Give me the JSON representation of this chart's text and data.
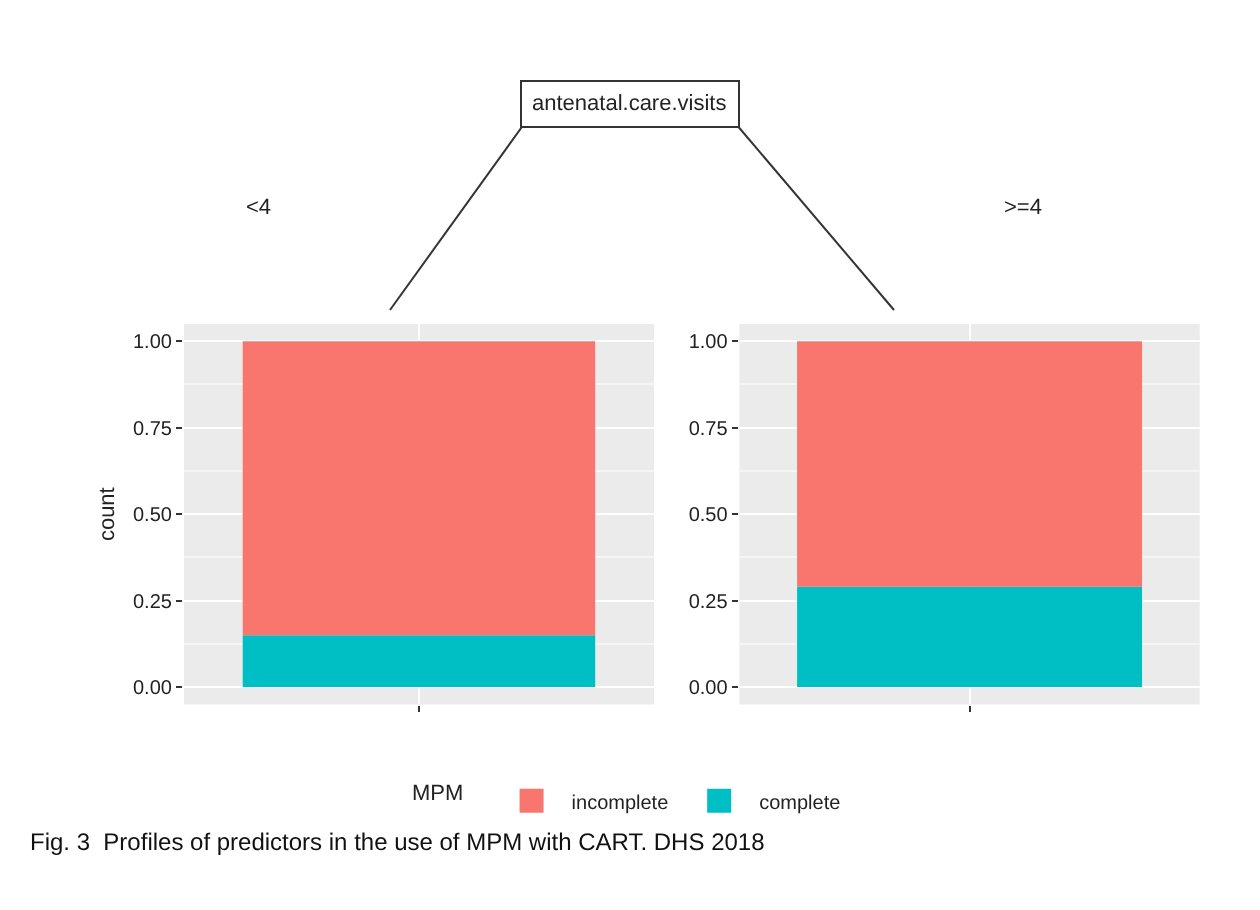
{
  "chart_data": [
    {
      "type": "bar",
      "title": "<4",
      "ylabel": "count",
      "categories": [
        null
      ],
      "stacked": true,
      "legend": "bottom",
      "legend_title": "MPM",
      "grid": true,
      "tick_labels": "y",
      "ylim": [
        -0.05,
        1.05
      ],
      "yticks": [
        {
          "value": 0,
          "label": "0.00"
        },
        {
          "value": 0.25,
          "label": "0.25"
        },
        {
          "value": 0.5,
          "label": "0.50"
        },
        {
          "value": 0.75,
          "label": "0.75"
        },
        {
          "value": 1,
          "label": "1.00"
        }
      ],
      "series": [
        {
          "name": "complete",
          "color": "#00bfc4",
          "values": [
            0.15
          ]
        },
        {
          "name": "incomplete",
          "color": "#f8766d",
          "values": [
            0.85
          ]
        }
      ],
      "annotations": [
        "antenatal.care.visits",
        "Fig. 3  Profiles of predictors in the use of MPM with CART. DHS 2018"
      ]
    },
    {
      "type": "bar",
      "title": ">=4",
      "categories": [
        null
      ],
      "stacked": true,
      "grid": true,
      "tick_labels": "y",
      "ylim": [
        -0.05,
        1.05
      ],
      "yticks": [
        {
          "value": 0,
          "label": "0.00"
        },
        {
          "value": 0.25,
          "label": "0.25"
        },
        {
          "value": 0.5,
          "label": "0.50"
        },
        {
          "value": 0.75,
          "label": "0.75"
        },
        {
          "value": 1,
          "label": "1.00"
        }
      ],
      "series": [
        {
          "color": "#00bfc4",
          "values": [
            0.29
          ]
        },
        {
          "color": "#f8766d",
          "values": [
            0.71
          ]
        }
      ]
    }
  ]
}
